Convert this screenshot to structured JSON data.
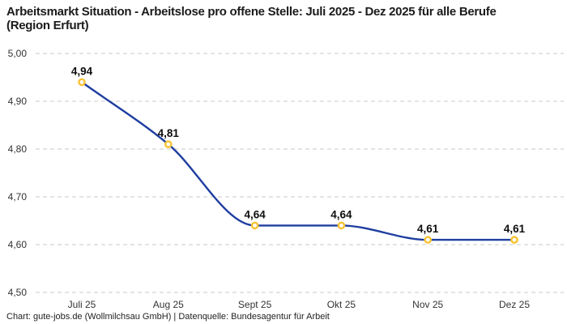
{
  "header": {
    "title": "Arbeitsmarkt Situation - Arbeitslose pro offene Stelle: Juli 2025 - Dez 2025 für alle Berufe (Region Erfurt)"
  },
  "chart_data": {
    "type": "line",
    "title": "Arbeitsmarkt Situation - Arbeitslose pro offene Stelle: Juli 2025 - Dez 2025 für alle Berufe (Region Erfurt)",
    "categories": [
      "Juli 25",
      "Aug 25",
      "Sept 25",
      "Okt 25",
      "Nov 25",
      "Dez 25"
    ],
    "values": [
      4.94,
      4.81,
      4.64,
      4.64,
      4.61,
      4.61
    ],
    "point_labels": [
      "4,94",
      "4,81",
      "4,64",
      "4,64",
      "4,61",
      "4,61"
    ],
    "xlabel": "",
    "ylabel": "",
    "ylim": [
      4.5,
      5.0
    ],
    "ytick_values": [
      5.0,
      4.9,
      4.8,
      4.7,
      4.6,
      4.5
    ],
    "ytick_labels": [
      "5,00",
      "4,90",
      "4,80",
      "4,70",
      "4,60",
      "4,50"
    ],
    "grid": true,
    "legend": "none",
    "colors": {
      "line": "#1f3ea0",
      "marker_stroke": "#f7c232",
      "marker_fill": "#ffffff",
      "gridline": "#c9c9c9"
    }
  },
  "footer": {
    "credit": "Chart: gute-jobs.de (Wollmilchsau GmbH) | Datenquelle: Bundesagentur für Arbeit"
  }
}
